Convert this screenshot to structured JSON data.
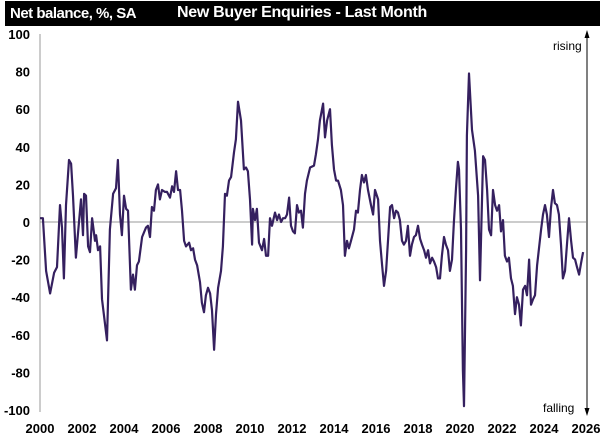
{
  "chart_data": {
    "type": "line",
    "title": "New Buyer Enquiries - Last Month",
    "ylabel": "Net balance, %, SA",
    "xlabel": "",
    "xlim": [
      2000,
      2026
    ],
    "ylim": [
      -100,
      100
    ],
    "x_ticks": [
      "2000",
      "2002",
      "2004",
      "2006",
      "2008",
      "2010",
      "2012",
      "2014",
      "2016",
      "2018",
      "2020",
      "2022",
      "2024",
      "2026"
    ],
    "y_ticks": [
      "100",
      "80",
      "60",
      "40",
      "20",
      "0",
      "-20",
      "-40",
      "-60",
      "-80",
      "-100"
    ],
    "annotations": {
      "top": "rising",
      "bottom": "falling"
    },
    "grid": false,
    "zero_line": true,
    "line_color": "#35205f",
    "series": [
      {
        "x": [
          2000.0,
          2000.14,
          2000.29,
          2000.48,
          2000.67,
          2000.81,
          2000.95,
          2001.05,
          2001.14,
          2001.24,
          2001.38,
          2001.48,
          2001.57,
          2001.71,
          2001.81,
          2001.95,
          2002.05,
          2002.1,
          2002.19,
          2002.29,
          2002.38,
          2002.48,
          2002.62,
          2002.67,
          2002.76,
          2002.86,
          2002.95,
          2003.19,
          2003.33,
          2003.48,
          2003.62,
          2003.71,
          2003.81,
          2003.9,
          2004.0,
          2004.1,
          2004.19,
          2004.33,
          2004.43,
          2004.52,
          2004.62,
          2004.71,
          2004.86,
          2005.05,
          2005.14,
          2005.24,
          2005.33,
          2005.43,
          2005.52,
          2005.62,
          2005.71,
          2005.81,
          2005.95,
          2006.05,
          2006.19,
          2006.29,
          2006.38,
          2006.48,
          2006.57,
          2006.67,
          2006.76,
          2006.86,
          2006.95,
          2007.1,
          2007.19,
          2007.29,
          2007.38,
          2007.48,
          2007.62,
          2007.71,
          2007.81,
          2007.9,
          2008.0,
          2008.1,
          2008.19,
          2008.29,
          2008.38,
          2008.48,
          2008.62,
          2008.71,
          2008.81,
          2008.9,
          2009.0,
          2009.1,
          2009.24,
          2009.33,
          2009.43,
          2009.57,
          2009.71,
          2009.81,
          2009.9,
          2010.0,
          2010.1,
          2010.14,
          2010.24,
          2010.33,
          2010.43,
          2010.57,
          2010.67,
          2010.76,
          2010.86,
          2010.95,
          2011.05,
          2011.19,
          2011.29,
          2011.38,
          2011.48,
          2011.57,
          2011.67,
          2011.76,
          2011.86,
          2011.95,
          2012.05,
          2012.14,
          2012.24,
          2012.33,
          2012.43,
          2012.52,
          2012.62,
          2012.71,
          2012.86,
          2013.05,
          2013.14,
          2013.24,
          2013.33,
          2013.48,
          2013.57,
          2013.67,
          2013.81,
          2013.9,
          2014.0,
          2014.1,
          2014.19,
          2014.33,
          2014.43,
          2014.52,
          2014.62,
          2014.71,
          2014.81,
          2014.95,
          2015.05,
          2015.14,
          2015.24,
          2015.33,
          2015.43,
          2015.52,
          2015.62,
          2015.76,
          2015.86,
          2015.95,
          2016.1,
          2016.19,
          2016.29,
          2016.38,
          2016.48,
          2016.57,
          2016.67,
          2016.76,
          2016.86,
          2016.95,
          2017.05,
          2017.14,
          2017.24,
          2017.33,
          2017.43,
          2017.52,
          2017.62,
          2017.71,
          2017.81,
          2017.9,
          2018.0,
          2018.1,
          2018.19,
          2018.29,
          2018.38,
          2018.48,
          2018.57,
          2018.67,
          2018.76,
          2018.86,
          2018.95,
          2019.05,
          2019.14,
          2019.24,
          2019.33,
          2019.43,
          2019.52,
          2019.62,
          2019.71,
          2019.81,
          2019.9,
          2019.95,
          2020.05,
          2020.14,
          2020.19,
          2020.29,
          2020.33,
          2020.43,
          2020.57,
          2020.71,
          2020.86,
          2020.95,
          2021.1,
          2021.19,
          2021.29,
          2021.38,
          2021.48,
          2021.57,
          2021.67,
          2021.76,
          2021.86,
          2021.95,
          2022.05,
          2022.14,
          2022.24,
          2022.33,
          2022.43,
          2022.52,
          2022.62,
          2022.71,
          2022.81,
          2022.9,
          2023.0,
          2023.1,
          2023.19,
          2023.29,
          2023.38,
          2023.48,
          2023.57,
          2023.67,
          2023.76,
          2023.86,
          2023.95,
          2024.05,
          2024.14,
          2024.24,
          2024.33,
          2024.43,
          2024.52,
          2024.62,
          2024.71,
          2024.81,
          2024.9,
          2025.0,
          2025.1,
          2025.19,
          2025.29,
          2025.38,
          2025.48,
          2025.57,
          2025.67,
          2025.76,
          2025.86
        ],
        "y": [
          2,
          2,
          -26,
          -38,
          -27,
          -24,
          9,
          -3,
          -30,
          9,
          33,
          31,
          14,
          -19,
          -6,
          12,
          -7,
          15,
          14,
          -13,
          -16,
          2,
          -10,
          -7,
          -15,
          -13,
          -41,
          -63,
          -4,
          15,
          18,
          33,
          4,
          -7,
          14,
          7,
          6,
          -36,
          -28,
          -36,
          -23,
          -21,
          -8,
          -3,
          -2,
          -8,
          8,
          6,
          17,
          20,
          12,
          17,
          16,
          16,
          13,
          19,
          16,
          27,
          17,
          17,
          6,
          -10,
          -13,
          -11,
          -15,
          -14,
          -20,
          -23,
          -32,
          -43,
          -48,
          -39,
          -35,
          -38,
          -47,
          -68,
          -49,
          -35,
          -26,
          -13,
          15,
          14,
          22,
          24,
          37,
          44,
          64,
          54,
          28,
          29,
          27,
          12,
          -12,
          7,
          1,
          7,
          -11,
          -15,
          -9,
          -18,
          -18,
          2,
          -2,
          5,
          1,
          4,
          0,
          2,
          2,
          4,
          13,
          -2,
          -5,
          -6,
          9,
          5,
          6,
          -3,
          15,
          22,
          29,
          30,
          36,
          44,
          54,
          63,
          45,
          54,
          60,
          41,
          28,
          22,
          22,
          17,
          9,
          -18,
          -10,
          -14,
          -10,
          -4,
          6,
          5,
          17,
          25,
          21,
          25,
          17,
          9,
          4,
          17,
          12,
          -10,
          -23,
          -34,
          -26,
          -10,
          8,
          9,
          2,
          6,
          5,
          1,
          -10,
          -12,
          -10,
          -2,
          -18,
          -12,
          -8,
          -7,
          -2,
          -9,
          -12,
          -15,
          -19,
          -15,
          -22,
          -19,
          -21,
          -24,
          -30,
          -30,
          -18,
          -8,
          -12,
          -15,
          -26,
          -20,
          0,
          18,
          32,
          28,
          -4,
          -79,
          -98,
          -15,
          46,
          79,
          49,
          38,
          14,
          -31,
          35,
          33,
          17,
          -4,
          -7,
          17,
          9,
          6,
          9,
          -5,
          1,
          -18,
          -21,
          -19,
          -30,
          -34,
          -49,
          -40,
          -44,
          -55,
          -36,
          -34,
          -39,
          -20,
          -44,
          -41,
          -39,
          -23,
          -14,
          -4,
          4,
          9,
          4,
          -8,
          7,
          17,
          10,
          9,
          4,
          -12,
          -30,
          -26,
          -11,
          2,
          -10,
          -19,
          -20,
          -24,
          -28,
          -22,
          -16
        ]
      }
    ]
  }
}
